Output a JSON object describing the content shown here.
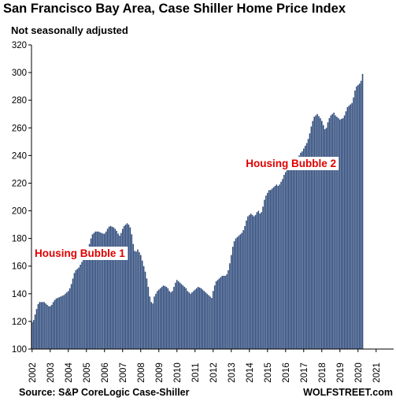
{
  "header": {
    "title": "San Francisco Bay Area, Case Shiller Home Price Index",
    "subtitle": "Not seasonally adjusted"
  },
  "footer": {
    "source": "Source: S&P CoreLogic Case-Shiller",
    "brand": "WOLFSTREET.com"
  },
  "chart_data": {
    "type": "bar",
    "title": "San Francisco Bay Area, Case Shiller Home Price Index",
    "subtitle": "Not seasonally adjusted",
    "xlabel": "",
    "ylabel": "",
    "ylim": [
      100,
      320
    ],
    "yticks": [
      100,
      120,
      140,
      160,
      180,
      200,
      220,
      240,
      260,
      280,
      300,
      320
    ],
    "grid": false,
    "bar_color": "#2f4b7c",
    "x_tick_labels": [
      "2002",
      "2003",
      "2004",
      "2005",
      "2006",
      "2007",
      "2008",
      "2009",
      "2010",
      "2011",
      "2012",
      "2013",
      "2014",
      "2015",
      "2016",
      "2017",
      "2018",
      "2019",
      "2020",
      "2021"
    ],
    "x_tick_label_rotation": -90,
    "x_axis_description": "monthly, January 2002 through 2021",
    "annotations": [
      {
        "text": "Housing Bubble 1",
        "color": "#e00000",
        "date": "2004-09"
      },
      {
        "text": "Housing Bubble 2",
        "color": "#e00000",
        "date": "2016-05"
      }
    ],
    "series": [
      {
        "start": "2002-01",
        "frequency": "monthly",
        "values": [
          119.5,
          121.0,
          125.0,
          129.0,
          132.5,
          134.0,
          134.0,
          134.0,
          134.0,
          133.0,
          132.0,
          131.0,
          131.0,
          132.0,
          134.0,
          135.5,
          136.5,
          137.0,
          137.5,
          138.0,
          138.5,
          139.0,
          140.0,
          141.0,
          142.0,
          144.0,
          147.0,
          151.0,
          155.0,
          157.0,
          158.0,
          159.0,
          161.0,
          163.0,
          165.0,
          167.0,
          169.0,
          172.0,
          176.0,
          180.0,
          183.0,
          184.0,
          185.0,
          185.0,
          185.0,
          184.5,
          184.0,
          183.5,
          183.5,
          185.0,
          187.0,
          188.5,
          189.0,
          188.5,
          188.0,
          187.0,
          185.5,
          183.5,
          182.0,
          184.0,
          187.0,
          189.0,
          190.0,
          191.0,
          190.0,
          188.0,
          183.0,
          176.0,
          171.0,
          170.5,
          172.0,
          170.0,
          168.0,
          164.0,
          160.0,
          156.0,
          151.0,
          145.0,
          138.0,
          134.0,
          133.0,
          138.0,
          140.0,
          142.0,
          143.0,
          144.0,
          145.0,
          146.0,
          145.5,
          145.0,
          144.0,
          142.0,
          141.0,
          142.0,
          145.0,
          148.0,
          150.0,
          149.0,
          148.0,
          147.0,
          146.0,
          145.0,
          144.0,
          142.0,
          141.0,
          140.0,
          141.0,
          142.0,
          143.0,
          144.0,
          145.0,
          144.5,
          144.0,
          143.0,
          142.0,
          141.0,
          140.0,
          139.0,
          138.0,
          137.0,
          142.0,
          146.0,
          149.0,
          150.0,
          151.0,
          152.0,
          153.0,
          153.0,
          153.0,
          154.0,
          157.0,
          162.0,
          168.0,
          174.0,
          178.0,
          180.0,
          181.0,
          182.0,
          183.0,
          184.0,
          186.0,
          189.0,
          193.0,
          196.0,
          197.0,
          198.0,
          197.0,
          196.0,
          197.0,
          199.0,
          200.0,
          198.0,
          199.0,
          203.0,
          208.0,
          211.0,
          213.0,
          215.0,
          215.0,
          216.0,
          217.0,
          218.0,
          219.0,
          218.0,
          219.0,
          221.0,
          223.0,
          226.0,
          228.0,
          230.0,
          232.0,
          233.0,
          234.0,
          234.5,
          234.0,
          236.0,
          238.0,
          240.0,
          242.0,
          243.0,
          245.0,
          247.0,
          249.0,
          252.0,
          256.0,
          261.0,
          265.0,
          268.0,
          269.0,
          270.0,
          268.5,
          267.0,
          265.0,
          262.0,
          259.0,
          260.0,
          264.0,
          267.0,
          269.0,
          270.0,
          271.0,
          269.0,
          268.0,
          267.0,
          266.0,
          266.5,
          267.0,
          269.0,
          272.0,
          275.0,
          276.0,
          277.0,
          278.0,
          282.0,
          287.0,
          290.0,
          291.0,
          292.0,
          294.0,
          299.0
        ]
      }
    ]
  }
}
